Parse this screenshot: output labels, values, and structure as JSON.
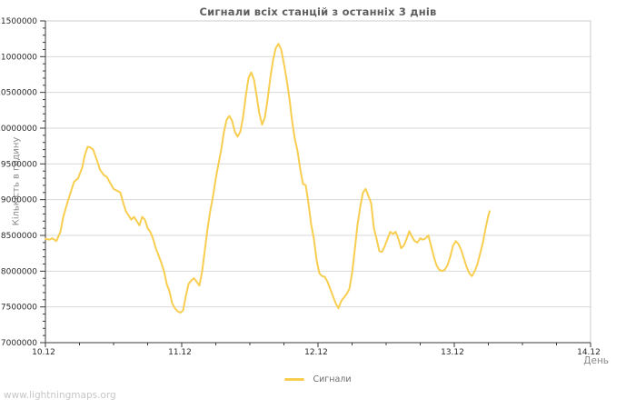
{
  "watermark": "www.lightningmaps.org",
  "chart_data": {
    "type": "line",
    "title": "Сигнали всіх станцій з останніх 3 днів",
    "xlabel": "День",
    "ylabel": "Кількість в годину",
    "grid": "horizontal-only",
    "legend_position": "bottom-center",
    "colors": {
      "line": "#F8CE50",
      "grid": "#d9d9d9",
      "frame": "#cccccc",
      "axis": "#3a3a3a",
      "tick_label": "#2a2a2a",
      "title_text": "#5f5f5f",
      "axis_label_text": "#8a8a8a",
      "watermark_text": "#c6c6c6"
    },
    "x_domain_days": [
      0,
      4
    ],
    "x_minor_step_days": 0.25,
    "x_ticks": [
      {
        "t": 0,
        "label": "10.12"
      },
      {
        "t": 1,
        "label": "11.12"
      },
      {
        "t": 2,
        "label": "12.12"
      },
      {
        "t": 3,
        "label": "13.12"
      },
      {
        "t": 4,
        "label": "14.12"
      }
    ],
    "y_min": 7000000,
    "y_max": 11500000,
    "y_tick_step": 500000,
    "y_minor_step": 100000,
    "y_ticks": [
      {
        "v": 11500000,
        "label": "11500000"
      },
      {
        "v": 11000000,
        "label": "11000000"
      },
      {
        "v": 10500000,
        "label": "10500000"
      },
      {
        "v": 10000000,
        "label": "10000000"
      },
      {
        "v": 9500000,
        "label": "9500000"
      },
      {
        "v": 9000000,
        "label": "9000000"
      },
      {
        "v": 8500000,
        "label": "8500000"
      },
      {
        "v": 8000000,
        "label": "8000000"
      },
      {
        "v": 7500000,
        "label": "7500000"
      },
      {
        "v": 7000000,
        "label": "7000000"
      }
    ],
    "series": [
      {
        "name": "Сигнали",
        "color": "#F8CE50",
        "points": [
          [
            0.0,
            8450000
          ],
          [
            0.03,
            8440000
          ],
          [
            0.05,
            8460000
          ],
          [
            0.08,
            8420000
          ],
          [
            0.11,
            8550000
          ],
          [
            0.13,
            8750000
          ],
          [
            0.16,
            8950000
          ],
          [
            0.19,
            9130000
          ],
          [
            0.21,
            9250000
          ],
          [
            0.24,
            9300000
          ],
          [
            0.27,
            9450000
          ],
          [
            0.29,
            9630000
          ],
          [
            0.31,
            9740000
          ],
          [
            0.33,
            9730000
          ],
          [
            0.35,
            9700000
          ],
          [
            0.38,
            9540000
          ],
          [
            0.4,
            9420000
          ],
          [
            0.43,
            9340000
          ],
          [
            0.45,
            9320000
          ],
          [
            0.47,
            9250000
          ],
          [
            0.5,
            9150000
          ],
          [
            0.53,
            9120000
          ],
          [
            0.55,
            9100000
          ],
          [
            0.57,
            8960000
          ],
          [
            0.59,
            8840000
          ],
          [
            0.61,
            8780000
          ],
          [
            0.63,
            8720000
          ],
          [
            0.65,
            8760000
          ],
          [
            0.67,
            8700000
          ],
          [
            0.69,
            8640000
          ],
          [
            0.71,
            8760000
          ],
          [
            0.73,
            8720000
          ],
          [
            0.75,
            8600000
          ],
          [
            0.77,
            8550000
          ],
          [
            0.79,
            8450000
          ],
          [
            0.81,
            8320000
          ],
          [
            0.83,
            8220000
          ],
          [
            0.85,
            8120000
          ],
          [
            0.87,
            8000000
          ],
          [
            0.89,
            7820000
          ],
          [
            0.91,
            7720000
          ],
          [
            0.93,
            7550000
          ],
          [
            0.95,
            7480000
          ],
          [
            0.97,
            7440000
          ],
          [
            0.99,
            7420000
          ],
          [
            1.01,
            7450000
          ],
          [
            1.03,
            7650000
          ],
          [
            1.05,
            7820000
          ],
          [
            1.07,
            7870000
          ],
          [
            1.09,
            7900000
          ],
          [
            1.11,
            7850000
          ],
          [
            1.13,
            7800000
          ],
          [
            1.15,
            8000000
          ],
          [
            1.17,
            8300000
          ],
          [
            1.19,
            8600000
          ],
          [
            1.21,
            8850000
          ],
          [
            1.23,
            9050000
          ],
          [
            1.25,
            9300000
          ],
          [
            1.27,
            9500000
          ],
          [
            1.29,
            9700000
          ],
          [
            1.31,
            9950000
          ],
          [
            1.33,
            10120000
          ],
          [
            1.35,
            10170000
          ],
          [
            1.37,
            10100000
          ],
          [
            1.39,
            9950000
          ],
          [
            1.41,
            9880000
          ],
          [
            1.43,
            9950000
          ],
          [
            1.45,
            10150000
          ],
          [
            1.47,
            10450000
          ],
          [
            1.49,
            10700000
          ],
          [
            1.51,
            10780000
          ],
          [
            1.53,
            10680000
          ],
          [
            1.55,
            10450000
          ],
          [
            1.57,
            10200000
          ],
          [
            1.59,
            10050000
          ],
          [
            1.61,
            10150000
          ],
          [
            1.63,
            10400000
          ],
          [
            1.65,
            10700000
          ],
          [
            1.67,
            10950000
          ],
          [
            1.69,
            11120000
          ],
          [
            1.71,
            11180000
          ],
          [
            1.73,
            11100000
          ],
          [
            1.75,
            10900000
          ],
          [
            1.77,
            10680000
          ],
          [
            1.79,
            10420000
          ],
          [
            1.81,
            10100000
          ],
          [
            1.83,
            9850000
          ],
          [
            1.85,
            9680000
          ],
          [
            1.87,
            9420000
          ],
          [
            1.89,
            9220000
          ],
          [
            1.91,
            9200000
          ],
          [
            1.93,
            8950000
          ],
          [
            1.95,
            8650000
          ],
          [
            1.97,
            8450000
          ],
          [
            1.99,
            8150000
          ],
          [
            2.01,
            7970000
          ],
          [
            2.03,
            7930000
          ],
          [
            2.05,
            7920000
          ],
          [
            2.07,
            7850000
          ],
          [
            2.09,
            7750000
          ],
          [
            2.11,
            7650000
          ],
          [
            2.13,
            7550000
          ],
          [
            2.15,
            7480000
          ],
          [
            2.17,
            7580000
          ],
          [
            2.19,
            7630000
          ],
          [
            2.21,
            7680000
          ],
          [
            2.23,
            7750000
          ],
          [
            2.25,
            7970000
          ],
          [
            2.27,
            8300000
          ],
          [
            2.29,
            8650000
          ],
          [
            2.31,
            8900000
          ],
          [
            2.33,
            9100000
          ],
          [
            2.35,
            9150000
          ],
          [
            2.37,
            9050000
          ],
          [
            2.39,
            8950000
          ],
          [
            2.41,
            8600000
          ],
          [
            2.43,
            8450000
          ],
          [
            2.45,
            8280000
          ],
          [
            2.47,
            8270000
          ],
          [
            2.49,
            8350000
          ],
          [
            2.51,
            8450000
          ],
          [
            2.53,
            8550000
          ],
          [
            2.55,
            8520000
          ],
          [
            2.57,
            8550000
          ],
          [
            2.59,
            8450000
          ],
          [
            2.61,
            8320000
          ],
          [
            2.63,
            8360000
          ],
          [
            2.65,
            8450000
          ],
          [
            2.67,
            8560000
          ],
          [
            2.69,
            8480000
          ],
          [
            2.71,
            8420000
          ],
          [
            2.73,
            8400000
          ],
          [
            2.75,
            8460000
          ],
          [
            2.77,
            8440000
          ],
          [
            2.79,
            8460000
          ],
          [
            2.81,
            8500000
          ],
          [
            2.83,
            8350000
          ],
          [
            2.85,
            8200000
          ],
          [
            2.87,
            8080000
          ],
          [
            2.89,
            8020000
          ],
          [
            2.91,
            8000000
          ],
          [
            2.93,
            8020000
          ],
          [
            2.95,
            8080000
          ],
          [
            2.97,
            8200000
          ],
          [
            2.99,
            8350000
          ],
          [
            3.01,
            8420000
          ],
          [
            3.03,
            8380000
          ],
          [
            3.05,
            8300000
          ],
          [
            3.07,
            8180000
          ],
          [
            3.09,
            8060000
          ],
          [
            3.11,
            7970000
          ],
          [
            3.13,
            7930000
          ],
          [
            3.15,
            8000000
          ],
          [
            3.17,
            8100000
          ],
          [
            3.19,
            8250000
          ],
          [
            3.21,
            8400000
          ],
          [
            3.23,
            8600000
          ],
          [
            3.25,
            8780000
          ],
          [
            3.26,
            8840000
          ]
        ]
      }
    ]
  }
}
